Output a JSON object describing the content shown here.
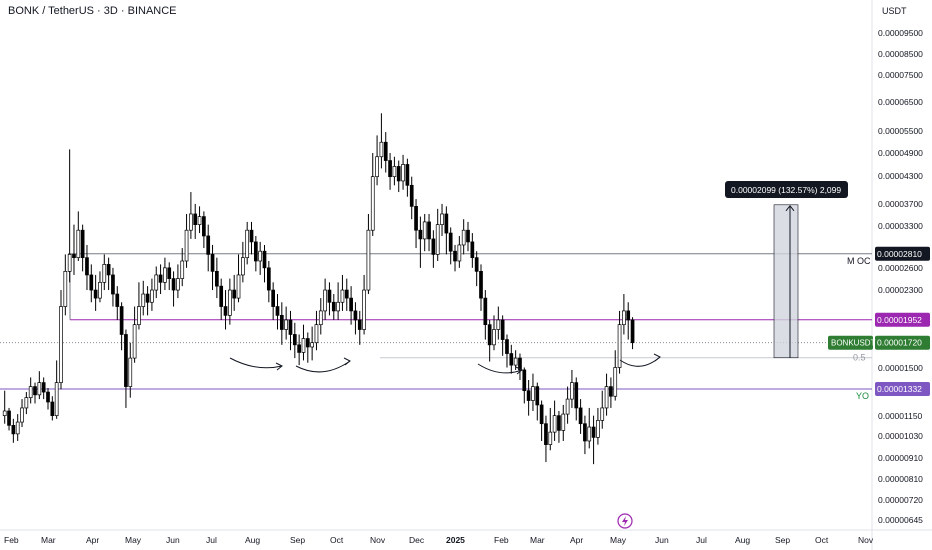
{
  "header": {
    "title": "BONK / TetherUS · 3D · BINANCE",
    "currency": "USDT"
  },
  "colors": {
    "up": "#ffffff",
    "down": "#000000",
    "candle_border": "#000000",
    "oc_line": "#9598a1",
    "magenta": "#9c27b0",
    "yo_line": "#7e57c2",
    "current_line": "#787b86",
    "measure_fill": "#d1d4dc",
    "badge_dark": "#131722",
    "badge_green": "#2e7d32",
    "label_green": "#1b8a3c"
  },
  "chart_data": {
    "type": "candlestick",
    "symbol": "BONKUSDT",
    "x_tick_labels": [
      "Feb",
      "Mar",
      "Apr",
      "May",
      "Jun",
      "Jul",
      "Aug",
      "Sep",
      "Oct",
      "Nov",
      "Dec",
      "2025",
      "Feb",
      "Mar",
      "Apr",
      "May",
      "Jun",
      "Jul",
      "Aug",
      "Sep",
      "Oct",
      "Nov"
    ],
    "y_tick_labels": [
      "0.00009500",
      "0.00008500",
      "0.00007500",
      "0.00006500",
      "0.00005500",
      "0.00004900",
      "0.00004300",
      "0.00003700",
      "0.00003300",
      "0.00002600",
      "0.00002300",
      "0.00001500",
      "0.00001150",
      "0.00001030",
      "0.00000910",
      "0.00000810",
      "0.00000720",
      "0.00000645"
    ],
    "y_scale": "log",
    "y_range": [
      6.2e-06,
      0.000105
    ],
    "levels": [
      {
        "name": "M OC",
        "value": 2.81e-05,
        "label": "0.00002810",
        "color": "#131722"
      },
      {
        "name": "",
        "value": 1.952e-05,
        "label": "0.00001952",
        "color": "#9c27b0"
      },
      {
        "name": "BONKUSDT",
        "value": 1.72e-05,
        "label": "0.00001720",
        "color": "#2e7d32"
      },
      {
        "name": "YO",
        "value": 1.332e-05,
        "label": "0.00001332",
        "color": "#7e57c2"
      }
    ],
    "fib_label": "0.5",
    "measure": {
      "from": 1.583e-05,
      "to": 3.682e-05,
      "label": "0.00002099 (132.57%) 2,099"
    },
    "candles": [
      [
        1.15e-05,
        1.18e-05,
        1.32e-05,
        1.1e-05
      ],
      [
        1.18e-05,
        1.09e-05,
        1.2e-05,
        1.06e-05
      ],
      [
        1.09e-05,
        1.04e-05,
        1.13e-05,
        9.9e-06
      ],
      [
        1.04e-05,
        1.11e-05,
        1.16e-05,
        1e-05
      ],
      [
        1.11e-05,
        1.2e-05,
        1.26e-05,
        1.08e-05
      ],
      [
        1.2e-05,
        1.27e-05,
        1.31e-05,
        1.16e-05
      ],
      [
        1.27e-05,
        1.35e-05,
        1.42e-05,
        1.23e-05
      ],
      [
        1.35e-05,
        1.29e-05,
        1.38e-05,
        1.23e-05
      ],
      [
        1.29e-05,
        1.38e-05,
        1.47e-05,
        1.26e-05
      ],
      [
        1.38e-05,
        1.31e-05,
        1.42e-05,
        1.26e-05
      ],
      [
        1.31e-05,
        1.24e-05,
        1.34e-05,
        1.19e-05
      ],
      [
        1.24e-05,
        1.15e-05,
        1.28e-05,
        1.12e-05
      ],
      [
        1.15e-05,
        1.38e-05,
        1.56e-05,
        1.13e-05
      ],
      [
        1.38e-05,
        2.1e-05,
        2.3e-05,
        1.33e-05
      ],
      [
        2.1e-05,
        2.55e-05,
        2.8e-05,
        2e-05
      ],
      [
        2.55e-05,
        2.8e-05,
        5e-05,
        2.4e-05
      ],
      [
        2.8e-05,
        2.75e-05,
        3.3e-05,
        2.5e-05
      ],
      [
        2.75e-05,
        3.2e-05,
        3.55e-05,
        2.7e-05
      ],
      [
        3.2e-05,
        2.75e-05,
        3.3e-05,
        2.55e-05
      ],
      [
        2.75e-05,
        2.5e-05,
        2.95e-05,
        2.3e-05
      ],
      [
        2.5e-05,
        2.3e-05,
        2.65e-05,
        2.15e-05
      ],
      [
        2.3e-05,
        2.2e-05,
        2.5e-05,
        2.05e-05
      ],
      [
        2.2e-05,
        2.4e-05,
        2.55e-05,
        2.15e-05
      ],
      [
        2.4e-05,
        2.65e-05,
        2.8e-05,
        2.3e-05
      ],
      [
        2.65e-05,
        2.5e-05,
        2.75e-05,
        2.3e-05
      ],
      [
        2.5e-05,
        2.25e-05,
        2.6e-05,
        2.1e-05
      ],
      [
        2.25e-05,
        2.1e-05,
        2.35e-05,
        1.95e-05
      ],
      [
        2.1e-05,
        1.8e-05,
        2.15e-05,
        1.65e-05
      ],
      [
        1.8e-05,
        1.35e-05,
        1.85e-05,
        1.2e-05
      ],
      [
        1.35e-05,
        1.58e-05,
        1.72e-05,
        1.27e-05
      ],
      [
        1.58e-05,
        1.9e-05,
        2.1e-05,
        1.54e-05
      ],
      [
        1.9e-05,
        2.1e-05,
        2.4e-05,
        1.85e-05
      ],
      [
        2.1e-05,
        2.25e-05,
        2.42e-05,
        2e-05
      ],
      [
        2.25e-05,
        2.15e-05,
        2.35e-05,
        2e-05
      ],
      [
        2.15e-05,
        2.3e-05,
        2.45e-05,
        2.05e-05
      ],
      [
        2.3e-05,
        2.5e-05,
        2.62e-05,
        2.2e-05
      ],
      [
        2.5e-05,
        2.4e-05,
        2.65e-05,
        2.25e-05
      ],
      [
        2.4e-05,
        2.6e-05,
        2.75e-05,
        2.3e-05
      ],
      [
        2.6e-05,
        2.45e-05,
        2.68e-05,
        2.3e-05
      ],
      [
        2.45e-05,
        2.3e-05,
        2.55e-05,
        2.1e-05
      ],
      [
        2.3e-05,
        2.45e-05,
        2.65e-05,
        2.2e-05
      ],
      [
        2.45e-05,
        2.7e-05,
        2.9e-05,
        2.35e-05
      ],
      [
        2.7e-05,
        3.2e-05,
        3.5e-05,
        2.6e-05
      ],
      [
        3.2e-05,
        3.5e-05,
        3.95e-05,
        3.05e-05
      ],
      [
        3.5e-05,
        3.3e-05,
        3.7e-05,
        3.05e-05
      ],
      [
        3.3e-05,
        3.45e-05,
        3.65e-05,
        3.15e-05
      ],
      [
        3.45e-05,
        3.1e-05,
        3.55e-05,
        2.9e-05
      ],
      [
        3.1e-05,
        2.8e-05,
        3.3e-05,
        2.55e-05
      ],
      [
        2.8e-05,
        2.55e-05,
        2.95e-05,
        2.3e-05
      ],
      [
        2.55e-05,
        2.35e-05,
        2.75e-05,
        2.2e-05
      ],
      [
        2.35e-05,
        2.1e-05,
        2.45e-05,
        1.95e-05
      ],
      [
        2.1e-05,
        2e-05,
        2.3e-05,
        1.85e-05
      ],
      [
        2e-05,
        2.3e-05,
        2.45e-05,
        1.9e-05
      ],
      [
        2.3e-05,
        2.2e-05,
        2.5e-05,
        2.05e-05
      ],
      [
        2.2e-05,
        2.5e-05,
        2.8e-05,
        2.15e-05
      ],
      [
        2.5e-05,
        2.75e-05,
        3e-05,
        2.4e-05
      ],
      [
        2.75e-05,
        3.2e-05,
        3.35e-05,
        2.65e-05
      ],
      [
        3.2e-05,
        3e-05,
        3.35e-05,
        2.8e-05
      ],
      [
        3e-05,
        2.7e-05,
        3.1e-05,
        2.55e-05
      ],
      [
        2.7e-05,
        2.85e-05,
        3e-05,
        2.5e-05
      ],
      [
        2.85e-05,
        2.6e-05,
        2.95e-05,
        2.4e-05
      ],
      [
        2.6e-05,
        2.3e-05,
        2.7e-05,
        2.15e-05
      ],
      [
        2.3e-05,
        2.1e-05,
        2.4e-05,
        1.95e-05
      ],
      [
        2.1e-05,
        2e-05,
        2.25e-05,
        1.85e-05
      ],
      [
        2e-05,
        1.85e-05,
        2.15e-05,
        1.7e-05
      ],
      [
        1.85e-05,
        1.95e-05,
        2.1e-05,
        1.75e-05
      ],
      [
        1.95e-05,
        1.8e-05,
        2.05e-05,
        1.65e-05
      ],
      [
        1.8e-05,
        1.7e-05,
        1.92e-05,
        1.58e-05
      ],
      [
        1.7e-05,
        1.63e-05,
        1.8e-05,
        1.52e-05
      ],
      [
        1.63e-05,
        1.76e-05,
        1.9e-05,
        1.56e-05
      ],
      [
        1.76e-05,
        1.68e-05,
        1.82e-05,
        1.54e-05
      ],
      [
        1.68e-05,
        1.72e-05,
        1.88e-05,
        1.56e-05
      ],
      [
        1.72e-05,
        1.9e-05,
        2.05e-05,
        1.65e-05
      ],
      [
        1.9e-05,
        2.05e-05,
        2.2e-05,
        1.8e-05
      ],
      [
        2.05e-05,
        2.3e-05,
        2.45e-05,
        1.95e-05
      ],
      [
        2.3e-05,
        2.15e-05,
        2.4e-05,
        2e-05
      ],
      [
        2.15e-05,
        2.05e-05,
        2.25e-05,
        1.95e-05
      ],
      [
        2.05e-05,
        2.15e-05,
        2.4e-05,
        1.95e-05
      ],
      [
        2.15e-05,
        2.3e-05,
        2.5e-05,
        2.05e-05
      ],
      [
        2.3e-05,
        2.2e-05,
        2.45e-05,
        2.05e-05
      ],
      [
        2.2e-05,
        2.05e-05,
        2.35e-05,
        1.9e-05
      ],
      [
        2.05e-05,
        1.95e-05,
        2.15e-05,
        1.8e-05
      ],
      [
        1.95e-05,
        1.85e-05,
        2.05e-05,
        1.7e-05
      ],
      [
        1.85e-05,
        2.3e-05,
        2.5e-05,
        1.8e-05
      ],
      [
        2.3e-05,
        3.2e-05,
        3.5e-05,
        2.25e-05
      ],
      [
        3.2e-05,
        4.3e-05,
        4.9e-05,
        3.1e-05
      ],
      [
        4.3e-05,
        4.8e-05,
        5.4e-05,
        4.1e-05
      ],
      [
        4.8e-05,
        5.2e-05,
        6.1e-05,
        4.5e-05
      ],
      [
        5.2e-05,
        4.7e-05,
        5.5e-05,
        4.4e-05
      ],
      [
        4.7e-05,
        4.3e-05,
        4.9e-05,
        4e-05
      ],
      [
        4.3e-05,
        4.55e-05,
        4.8e-05,
        4.1e-05
      ],
      [
        4.55e-05,
        4.2e-05,
        4.7e-05,
        3.95e-05
      ],
      [
        4.2e-05,
        4.6e-05,
        4.85e-05,
        4e-05
      ],
      [
        4.6e-05,
        4.1e-05,
        4.75e-05,
        3.85e-05
      ],
      [
        4.1e-05,
        3.65e-05,
        4.3e-05,
        3.4e-05
      ],
      [
        3.65e-05,
        3.2e-05,
        3.8e-05,
        2.9e-05
      ],
      [
        3.2e-05,
        3.05e-05,
        3.45e-05,
        2.6e-05
      ],
      [
        3.05e-05,
        3.35e-05,
        3.5e-05,
        2.85e-05
      ],
      [
        3.35e-05,
        3.05e-05,
        3.5e-05,
        2.85e-05
      ],
      [
        3.05e-05,
        2.8e-05,
        3.2e-05,
        2.6e-05
      ],
      [
        2.8e-05,
        3.3e-05,
        3.6e-05,
        2.7e-05
      ],
      [
        3.3e-05,
        3.5e-05,
        3.7e-05,
        3.1e-05
      ],
      [
        3.5e-05,
        3.15e-05,
        3.65e-05,
        2.8e-05
      ],
      [
        3.15e-05,
        2.85e-05,
        3.25e-05,
        2.65e-05
      ],
      [
        2.85e-05,
        2.7e-05,
        2.95e-05,
        2.55e-05
      ],
      [
        2.7e-05,
        2.95e-05,
        3.1e-05,
        2.6e-05
      ],
      [
        2.95e-05,
        3.2e-05,
        3.4e-05,
        2.8e-05
      ],
      [
        3.2e-05,
        3e-05,
        3.35e-05,
        2.85e-05
      ],
      [
        3e-05,
        2.75e-05,
        3.15e-05,
        2.6e-05
      ],
      [
        2.75e-05,
        2.55e-05,
        2.85e-05,
        2.35e-05
      ],
      [
        2.55e-05,
        2.2e-05,
        2.65e-05,
        2.05e-05
      ],
      [
        2.2e-05,
        1.9e-05,
        2.3e-05,
        1.75e-05
      ],
      [
        1.9e-05,
        1.7e-05,
        1.95e-05,
        1.55e-05
      ],
      [
        1.7e-05,
        1.85e-05,
        2e-05,
        1.65e-05
      ],
      [
        1.85e-05,
        1.95e-05,
        2.1e-05,
        1.75e-05
      ],
      [
        1.95e-05,
        1.75e-05,
        2e-05,
        1.6e-05
      ],
      [
        1.75e-05,
        1.62e-05,
        1.8e-05,
        1.5e-05
      ],
      [
        1.62e-05,
        1.52e-05,
        1.7e-05,
        1.45e-05
      ],
      [
        1.52e-05,
        1.58e-05,
        1.65e-05,
        1.48e-05
      ],
      [
        1.58e-05,
        1.48e-05,
        1.62e-05,
        1.4e-05
      ],
      [
        1.48e-05,
        1.32e-05,
        1.5e-05,
        1.23e-05
      ],
      [
        1.32e-05,
        1.25e-05,
        1.4e-05,
        1.15e-05
      ],
      [
        1.25e-05,
        1.35e-05,
        1.45e-05,
        1.18e-05
      ],
      [
        1.35e-05,
        1.22e-05,
        1.38e-05,
        1.12e-05
      ],
      [
        1.22e-05,
        1.1e-05,
        1.25e-05,
        1e-05
      ],
      [
        1.1e-05,
        9.8e-06,
        1.15e-05,
        8.9e-06
      ],
      [
        9.8e-06,
        1.05e-05,
        1.2e-05,
        9.5e-06
      ],
      [
        1.05e-05,
        1.15e-05,
        1.25e-05,
        1e-05
      ],
      [
        1.15e-05,
        1.06e-05,
        1.18e-05,
        9.9e-06
      ],
      [
        1.06e-05,
        1.16e-05,
        1.22e-05,
        1e-05
      ],
      [
        1.16e-05,
        1.26e-05,
        1.35e-05,
        1.1e-05
      ],
      [
        1.26e-05,
        1.38e-05,
        1.48e-05,
        1.2e-05
      ],
      [
        1.38e-05,
        1.2e-05,
        1.42e-05,
        1.12e-05
      ],
      [
        1.2e-05,
        1.1e-05,
        1.26e-05,
        1.04e-05
      ],
      [
        1.1e-05,
        1e-05,
        1.15e-05,
        9.3e-06
      ],
      [
        1e-05,
        1.08e-05,
        1.2e-05,
        9.6e-06
      ],
      [
        1.08e-05,
        1.02e-05,
        1.15e-05,
        8.8e-06
      ],
      [
        1.02e-05,
        1.12e-05,
        1.2e-05,
        9.8e-06
      ],
      [
        1.12e-05,
        1.2e-05,
        1.32e-05,
        1.07e-05
      ],
      [
        1.2e-05,
        1.35e-05,
        1.45e-05,
        1.15e-05
      ],
      [
        1.35e-05,
        1.28e-05,
        1.42e-05,
        1.2e-05
      ],
      [
        1.28e-05,
        1.5e-05,
        1.65e-05,
        1.25e-05
      ],
      [
        1.5e-05,
        1.9e-05,
        2.05e-05,
        1.45e-05
      ],
      [
        1.9e-05,
        2.05e-05,
        2.25e-05,
        1.8e-05
      ],
      [
        2.05e-05,
        1.95e-05,
        2.15e-05,
        1.75e-05
      ],
      [
        1.95e-05,
        1.72e-05,
        1.98e-05,
        1.66e-05
      ]
    ]
  }
}
